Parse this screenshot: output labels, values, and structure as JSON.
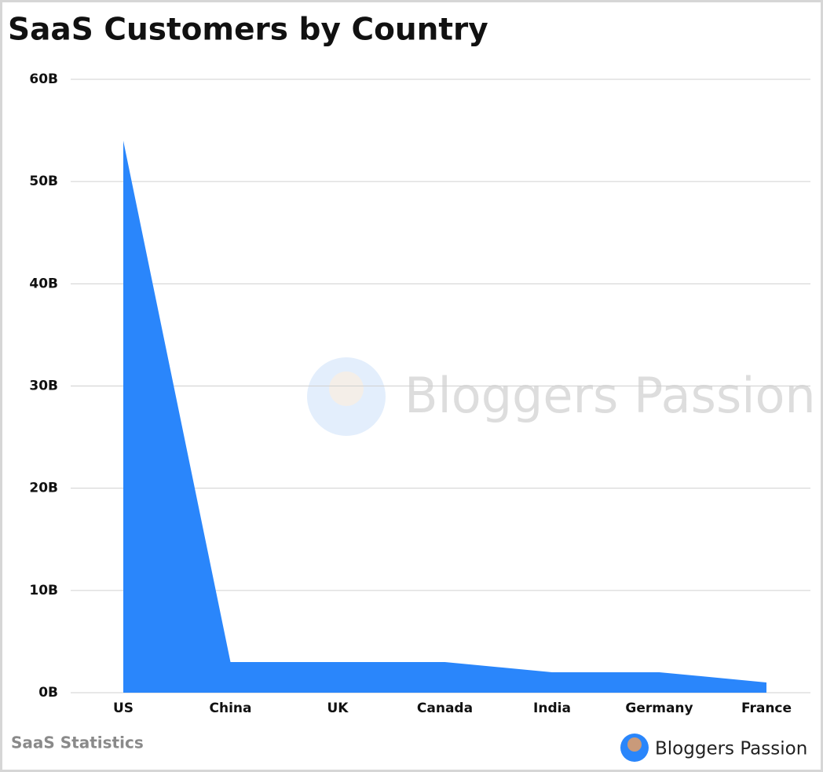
{
  "chart_data": {
    "type": "area",
    "title": "SaaS Customers by Country",
    "categories": [
      "US",
      "China",
      "UK",
      "Canada",
      "India",
      "Germany",
      "France"
    ],
    "values": [
      54,
      3,
      3,
      3,
      2,
      2,
      1
    ],
    "color": "#2a86fb",
    "ylim": [
      0,
      60
    ],
    "yticks": [
      {
        "value": 0,
        "label": "0B"
      },
      {
        "value": 10,
        "label": "10B"
      },
      {
        "value": 20,
        "label": "20B"
      },
      {
        "value": 30,
        "label": "30B"
      },
      {
        "value": 40,
        "label": "40B"
      },
      {
        "value": 50,
        "label": "50B"
      },
      {
        "value": 60,
        "label": "60B"
      }
    ],
    "grid": true,
    "source": "SaaS Statistics",
    "brand": "Bloggers Passion"
  }
}
